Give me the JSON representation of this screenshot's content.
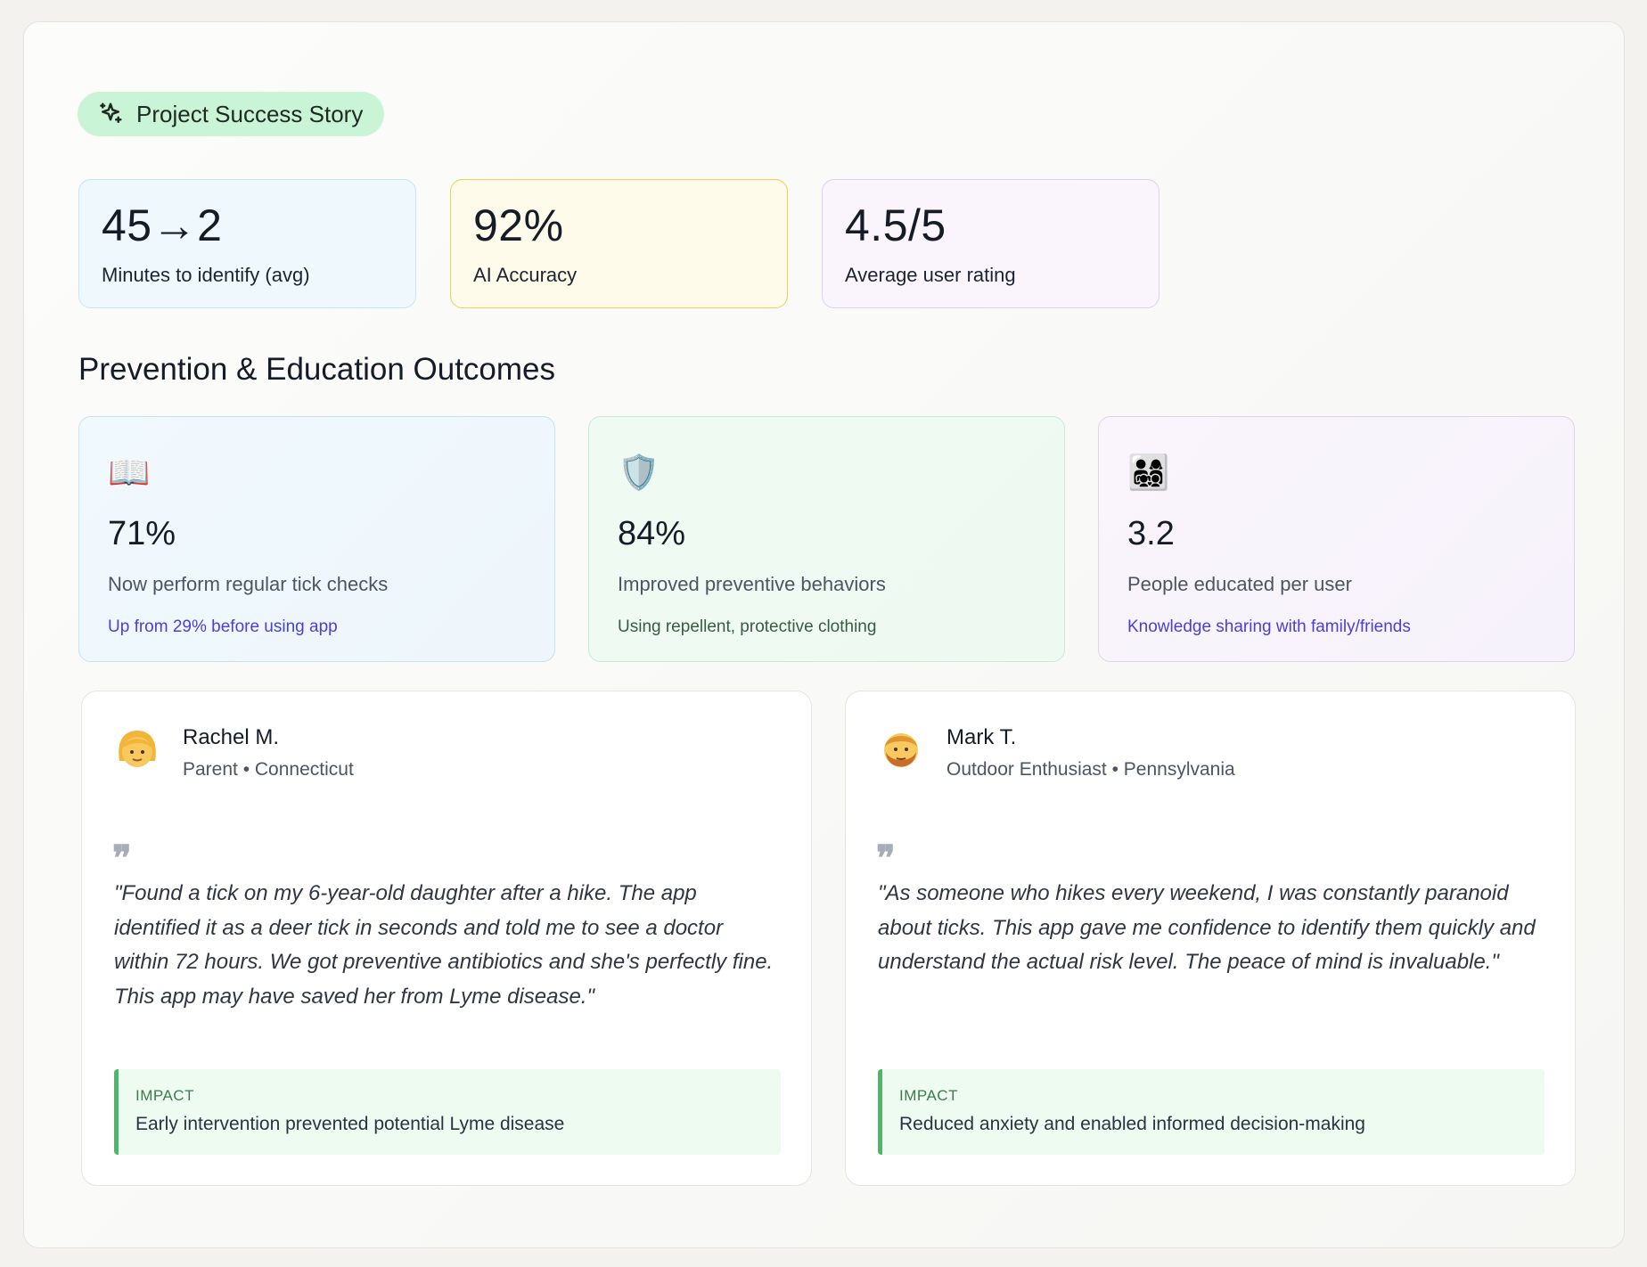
{
  "badge": {
    "label": "Project Success Story",
    "icon": "sparkle-icon"
  },
  "stats": [
    {
      "value": "45→2",
      "label": "Minutes to identify (avg)"
    },
    {
      "value": "92%",
      "label": "AI Accuracy"
    },
    {
      "value": "4.5/5",
      "label": "Average user rating"
    }
  ],
  "section_title": "Prevention & Education Outcomes",
  "outcomes": [
    {
      "icon": "📖",
      "value": "71%",
      "label": "Now perform regular tick checks",
      "sub": "Up from 29% before using app"
    },
    {
      "icon": "🛡️",
      "value": "84%",
      "label": "Improved preventive behaviors",
      "sub": "Using repellent, protective clothing"
    },
    {
      "icon": "👨‍👩‍👧‍👦",
      "value": "3.2",
      "label": "People educated per user",
      "sub": "Knowledge sharing with family/friends"
    }
  ],
  "testimonials": [
    {
      "avatar": "👩",
      "name": "Rachel M.",
      "role": "Parent • Connecticut",
      "quote": "\"Found a tick on my 6-year-old daughter after a hike. The app identified it as a deer tick in seconds and told me to see a doctor within 72 hours. We got preventive antibiotics and she's perfectly fine. This app may have saved her from Lyme disease.\"",
      "impact_label": "IMPACT",
      "impact_text": "Early intervention prevented potential Lyme disease"
    },
    {
      "avatar": "🧔",
      "name": "Mark T.",
      "role": "Outdoor Enthusiast • Pennsylvania",
      "quote": "\"As someone who hikes every weekend, I was constantly paranoid about ticks. This app gave me confidence to identify them quickly and understand the actual risk level. The peace of mind is invaluable.\"",
      "impact_label": "IMPACT",
      "impact_text": "Reduced anxiety and enabled informed decision-making"
    }
  ],
  "colors": {
    "badge_bg": "#c9f5d6",
    "accent_purple": "#4a3fd8",
    "impact_border": "#52b46b"
  }
}
